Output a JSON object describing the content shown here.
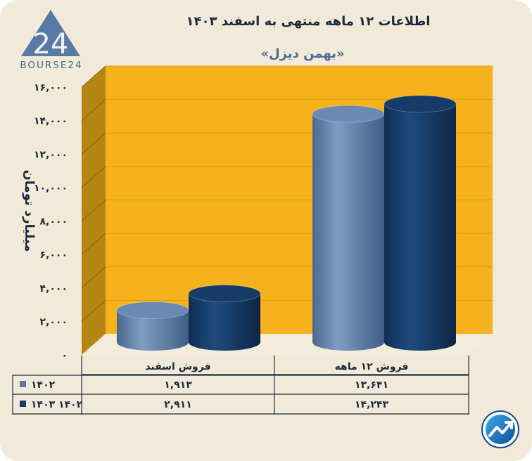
{
  "logo": {
    "text": "BOURSE24",
    "mark": "24"
  },
  "chart_data": {
    "type": "bar",
    "title": "اطلاعات ۱۲ ماهه منتهی به اسفند ۱۴۰۳",
    "subtitle": "«بهمن دیزل»",
    "ylabel": "میلیارد تومان",
    "ylim": [
      0,
      16000
    ],
    "yticks": [
      0,
      2000,
      4000,
      6000,
      8000,
      10000,
      12000,
      14000,
      16000
    ],
    "ytick_labels": [
      "۰",
      "۲,۰۰۰",
      "۴,۰۰۰",
      "۶,۰۰۰",
      "۸,۰۰۰",
      "۱۰,۰۰۰",
      "۱۲,۰۰۰",
      "۱۴,۰۰۰",
      "۱۶,۰۰۰"
    ],
    "categories": [
      "فروش ۱۲ ماهه",
      "فروش اسفند"
    ],
    "series": [
      {
        "name": "۱۴۰۲",
        "color": "#5a7aa6",
        "values": [
          13641,
          1913
        ],
        "value_labels": [
          "۱۳,۶۴۱",
          "۱,۹۱۳"
        ]
      },
      {
        "name": "۱۴۰۳ ۱۴۰۲",
        "color": "#163b66",
        "values": [
          14243,
          2911
        ],
        "value_labels": [
          "۱۴,۲۴۳",
          "۲,۹۱۱"
        ]
      }
    ],
    "grid": true,
    "legend": "data-table",
    "colors": {
      "wall": "#f6b21c",
      "side_wall": "#b68412",
      "floor": "#f4ecda",
      "grid": "#d99a10",
      "text": "#1b2a3f"
    }
  }
}
